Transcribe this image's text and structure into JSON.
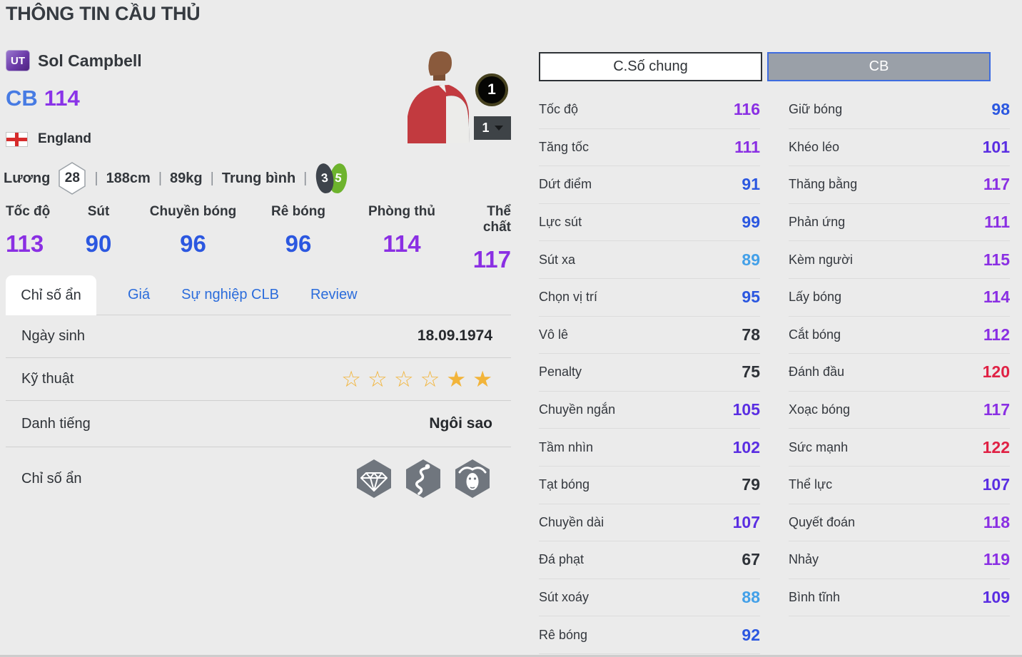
{
  "page": {
    "title": "THÔNG TIN CẦU THỦ"
  },
  "player": {
    "card_badge": "UT",
    "name": "Sol Campbell",
    "position": "CB",
    "ovr": "114",
    "nation": "England",
    "salary_label": "Lương",
    "salary": "28",
    "height": "188cm",
    "weight": "89kg",
    "body_type": "Trung bình",
    "separator": "|",
    "foot_left": "3",
    "foot_right": "5",
    "level_badge": "1",
    "level_select": "1"
  },
  "summary_stats": [
    {
      "label": "Tốc độ",
      "value": 113
    },
    {
      "label": "Sút",
      "value": 90
    },
    {
      "label": "Chuyền bóng",
      "value": 96
    },
    {
      "label": "Rê bóng",
      "value": 96
    },
    {
      "label": "Phòng thủ",
      "value": 114
    },
    {
      "label": "Thể chất",
      "value": 117
    }
  ],
  "tabs": [
    {
      "id": "hidden-stats",
      "label": "Chỉ số ẩn",
      "active": true
    },
    {
      "id": "price",
      "label": "Giá",
      "active": false
    },
    {
      "id": "club-career",
      "label": "Sự nghiệp CLB",
      "active": false
    },
    {
      "id": "review",
      "label": "Review",
      "active": false
    }
  ],
  "info": {
    "birth_label": "Ngày sinh",
    "birth_value": "18.09.1974",
    "skill_label": "Kỹ thuật",
    "skill_stars": [
      "empty",
      "empty",
      "empty",
      "empty",
      "filled",
      "filled"
    ],
    "fame_label": "Danh tiếng",
    "fame_value": "Ngôi sao",
    "hidden_label": "Chỉ số ẩn",
    "hidden_icons": [
      "gem-icon",
      "snake-icon",
      "buffalo-icon"
    ]
  },
  "stat_columns": [
    {
      "id": "general",
      "header": "C.Số chung",
      "rows": [
        {
          "label": "Tốc độ",
          "value": 116
        },
        {
          "label": "Tăng tốc",
          "value": 111
        },
        {
          "label": "Dứt điểm",
          "value": 91
        },
        {
          "label": "Lực sút",
          "value": 99
        },
        {
          "label": "Sút xa",
          "value": 89
        },
        {
          "label": "Chọn vị trí",
          "value": 95
        },
        {
          "label": "Vô lê",
          "value": 78
        },
        {
          "label": "Penalty",
          "value": 75
        },
        {
          "label": "Chuyền ngắn",
          "value": 105
        },
        {
          "label": "Tầm nhìn",
          "value": 102
        },
        {
          "label": "Tạt bóng",
          "value": 79
        },
        {
          "label": "Chuyền dài",
          "value": 107
        },
        {
          "label": "Đá phạt",
          "value": 67
        },
        {
          "label": "Sút xoáy",
          "value": 88
        },
        {
          "label": "Rê bóng",
          "value": 92
        }
      ]
    },
    {
      "id": "cb",
      "header": "CB",
      "rows": [
        {
          "label": "Giữ bóng",
          "value": 98
        },
        {
          "label": "Khéo léo",
          "value": 101
        },
        {
          "label": "Thăng bằng",
          "value": 117
        },
        {
          "label": "Phản ứng",
          "value": 111
        },
        {
          "label": "Kèm người",
          "value": 115
        },
        {
          "label": "Lấy bóng",
          "value": 114
        },
        {
          "label": "Cắt bóng",
          "value": 112
        },
        {
          "label": "Đánh đầu",
          "value": 120
        },
        {
          "label": "Xoạc bóng",
          "value": 117
        },
        {
          "label": "Sức mạnh",
          "value": 122
        },
        {
          "label": "Thể lực",
          "value": 107
        },
        {
          "label": "Quyết đoán",
          "value": 118
        },
        {
          "label": "Nhảy",
          "value": 119
        },
        {
          "label": "Bình tĩnh",
          "value": 109
        }
      ]
    }
  ],
  "value_colors": [
    {
      "min": 120,
      "color": "#e02144"
    },
    {
      "min": 110,
      "color": "#8a2fe3"
    },
    {
      "min": 100,
      "color": "#5a2ee2"
    },
    {
      "min": 90,
      "color": "#2b57e0"
    },
    {
      "min": 80,
      "color": "#43a0e8"
    },
    {
      "min": 0,
      "color": "#2e3238"
    }
  ]
}
